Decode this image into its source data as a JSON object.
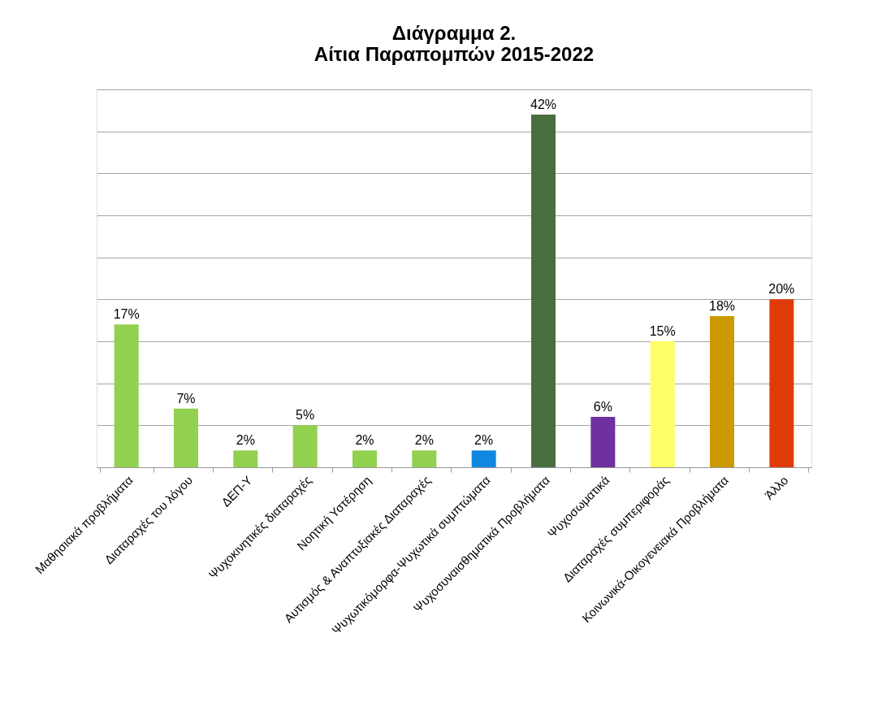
{
  "chart_data": {
    "type": "bar",
    "title": "Διάγραμμα 2.\nΑίτια Παραπομπών 2015-2022",
    "categories": [
      "Μαθησιακά προβλήματα",
      "Διαταραχές του λόγου",
      "ΔΕΠ-Υ",
      "Ψυχοκινητικές διαταραχές",
      "Νοητική Υστέρηση",
      "Αυτισμός & Αναπτυξιακές Διαταραχές",
      "Ψυχωτικόμορφα-Ψυχωτικά συμπτώματα",
      "Ψυχοσυναισθηματικά Προβλήματα",
      "Ψυχοσωματικά",
      "Διαταραχές συμπεριφοράς",
      "Κοινωνικά-Οικογενειακά Προβλήματα",
      "Άλλο"
    ],
    "values": [
      17,
      7,
      2,
      5,
      2,
      2,
      2,
      42,
      6,
      15,
      18,
      20
    ],
    "value_labels": [
      "17%",
      "7%",
      "2%",
      "5%",
      "2%",
      "2%",
      "2%",
      "42%",
      "6%",
      "15%",
      "18%",
      "20%"
    ],
    "colors": [
      "#92d050",
      "#92d050",
      "#92d050",
      "#92d050",
      "#92d050",
      "#92d050",
      "#1088e0",
      "#4a6e40",
      "#7030a0",
      "#ffff66",
      "#cc9900",
      "#e03c0a"
    ],
    "ylim": [
      0,
      45
    ],
    "yticks": [
      {
        "value": 0,
        "label": null
      },
      {
        "value": 5,
        "label": null
      },
      {
        "value": 10,
        "label": null
      },
      {
        "value": 15,
        "label": null
      },
      {
        "value": 20,
        "label": null
      },
      {
        "value": 25,
        "label": null
      },
      {
        "value": 30,
        "label": null
      },
      {
        "value": 35,
        "label": null
      },
      {
        "value": 40,
        "label": null
      },
      {
        "value": 45,
        "label": null
      }
    ],
    "grid": "y",
    "tick_labels": "x",
    "legend": false
  }
}
